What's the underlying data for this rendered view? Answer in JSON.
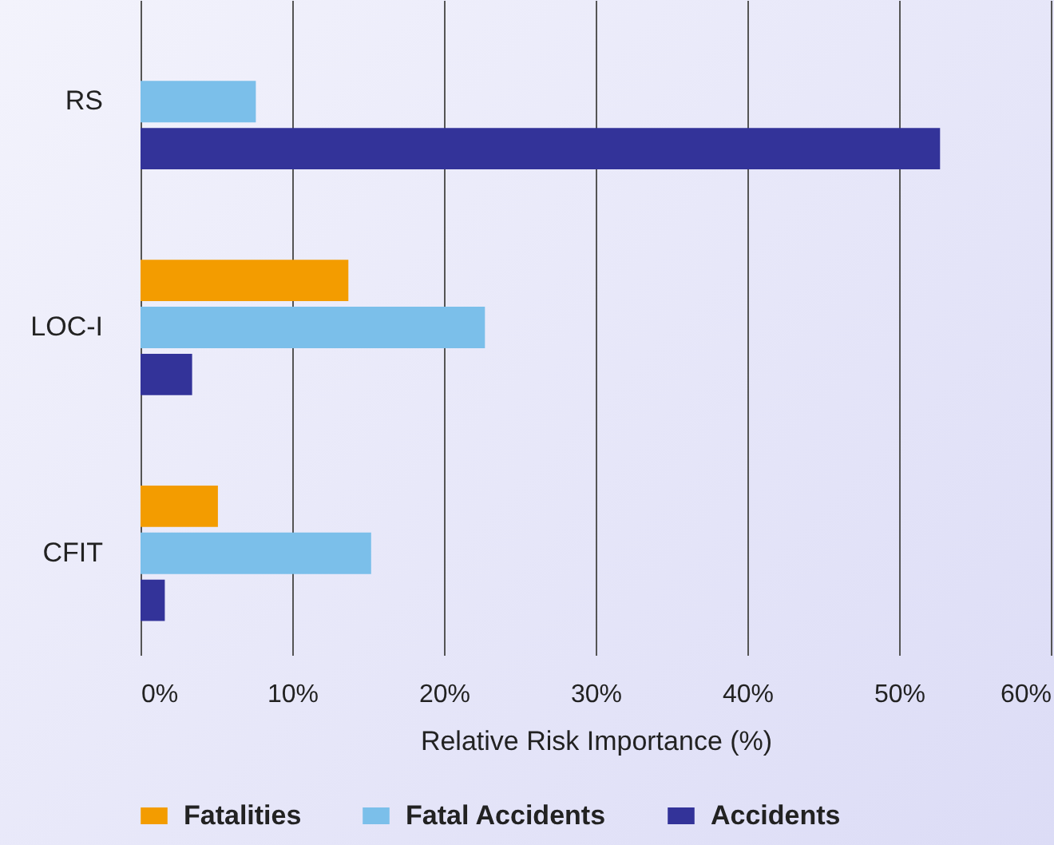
{
  "chart_data": {
    "type": "bar",
    "orientation": "horizontal",
    "xlabel": "Relative Risk Importance (%)",
    "categories": [
      "RS",
      "LOC-I",
      "CFIT"
    ],
    "series": [
      {
        "name": "Fatalities",
        "color": "#f39c00",
        "values": [
          null,
          13.7,
          5.1
        ]
      },
      {
        "name": "Fatal Accidents",
        "color": "#7bbfea",
        "values": [
          7.6,
          22.7,
          15.2
        ]
      },
      {
        "name": "Accidents",
        "color": "#333399",
        "values": [
          52.7,
          3.4,
          1.6
        ]
      }
    ],
    "xlim": [
      0,
      60
    ],
    "xticks": [
      {
        "value": 0,
        "label": "0%"
      },
      {
        "value": 10,
        "label": "10%"
      },
      {
        "value": 20,
        "label": "20%"
      },
      {
        "value": 30,
        "label": "30%"
      },
      {
        "value": 40,
        "label": "40%"
      },
      {
        "value": 50,
        "label": "50%"
      },
      {
        "value": 60,
        "label": "60%"
      }
    ],
    "grid": "x",
    "legend": "bottom"
  }
}
